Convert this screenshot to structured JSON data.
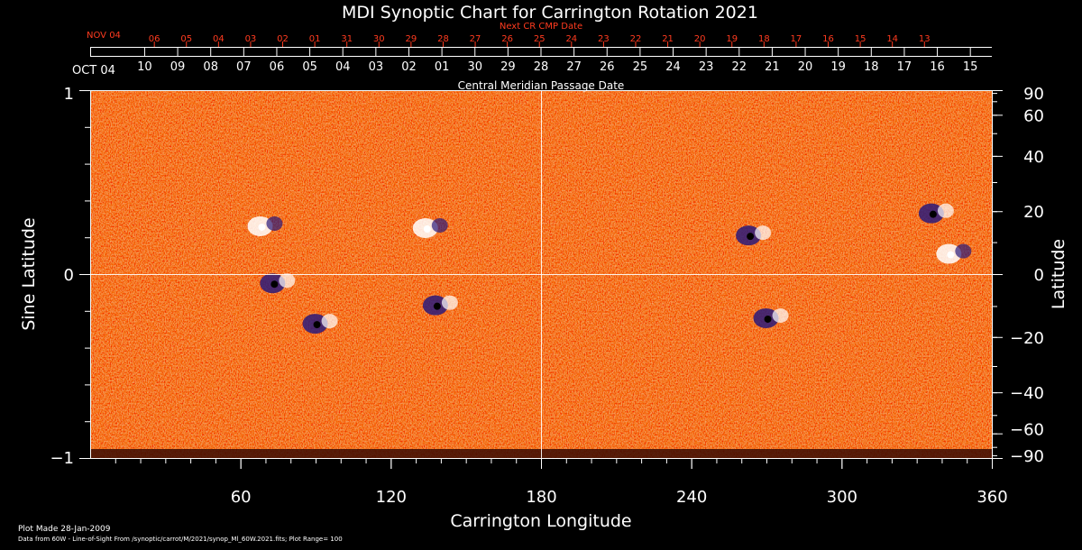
{
  "chart_data": {
    "type": "heatmap",
    "title": "MDI Synoptic Chart for Carrington Rotation 2021",
    "xlabel": "Carrington Longitude",
    "ylabel_left": "Sine Latitude",
    "ylabel_right": "Latitude",
    "xlim": [
      0,
      360
    ],
    "ylim": [
      -1,
      1
    ],
    "x_ticks": [
      60,
      120,
      180,
      240,
      300,
      360
    ],
    "y_ticks_left": [
      "1",
      "0",
      "−1"
    ],
    "y_ticks_right": [
      90,
      60,
      40,
      20,
      0,
      -20,
      -40,
      -60,
      -90
    ],
    "top_axis_label": "Central Meridian Passage Date",
    "top_axis_start_label": "OCT 04",
    "cmp_dates": [
      "10",
      "09",
      "08",
      "07",
      "06",
      "05",
      "04",
      "03",
      "02",
      "01",
      "30",
      "29",
      "28",
      "27",
      "26",
      "25",
      "24",
      "23",
      "22",
      "21",
      "20",
      "19",
      "18",
      "17",
      "16",
      "15"
    ],
    "next_axis_label": "Next CR CMP Date",
    "next_axis_start_label": "NOV 04",
    "next_cmp_dates": [
      "06",
      "05",
      "04",
      "03",
      "02",
      "01",
      "31",
      "30",
      "29",
      "28",
      "27",
      "26",
      "25",
      "24",
      "23",
      "22",
      "21",
      "20",
      "19",
      "18",
      "17",
      "16",
      "15",
      "14",
      "13"
    ],
    "colormap": [
      "#1a1060",
      "#2a1a7a",
      "#ff4a00",
      "#ffb060",
      "#ffffff"
    ],
    "plot_range": 100,
    "active_regions": [
      {
        "lon": 70,
        "lat_sin": 0.26,
        "polarity": "positive"
      },
      {
        "lon": 75,
        "lat_sin": -0.05,
        "polarity": "negative"
      },
      {
        "lon": 92,
        "lat_sin": -0.27,
        "polarity": "negative"
      },
      {
        "lon": 140,
        "lat_sin": -0.17,
        "polarity": "negative"
      },
      {
        "lon": 136,
        "lat_sin": 0.25,
        "polarity": "positive"
      },
      {
        "lon": 265,
        "lat_sin": 0.21,
        "polarity": "negative"
      },
      {
        "lon": 272,
        "lat_sin": -0.24,
        "polarity": "negative"
      },
      {
        "lon": 345,
        "lat_sin": 0.11,
        "polarity": "positive"
      },
      {
        "lon": 338,
        "lat_sin": 0.33,
        "polarity": "negative"
      }
    ]
  },
  "footer": {
    "plot_made": "Plot Made 28-Jan-2009",
    "data_source": "Data from 60W - Line-of-Sight From /synoptic/carrot/M/2021/synop_Ml_60W.2021.fits; Plot Range=  100"
  },
  "colors": {
    "red_text": "#ff3b1f",
    "text": "#ffffff",
    "background": "#000000"
  }
}
